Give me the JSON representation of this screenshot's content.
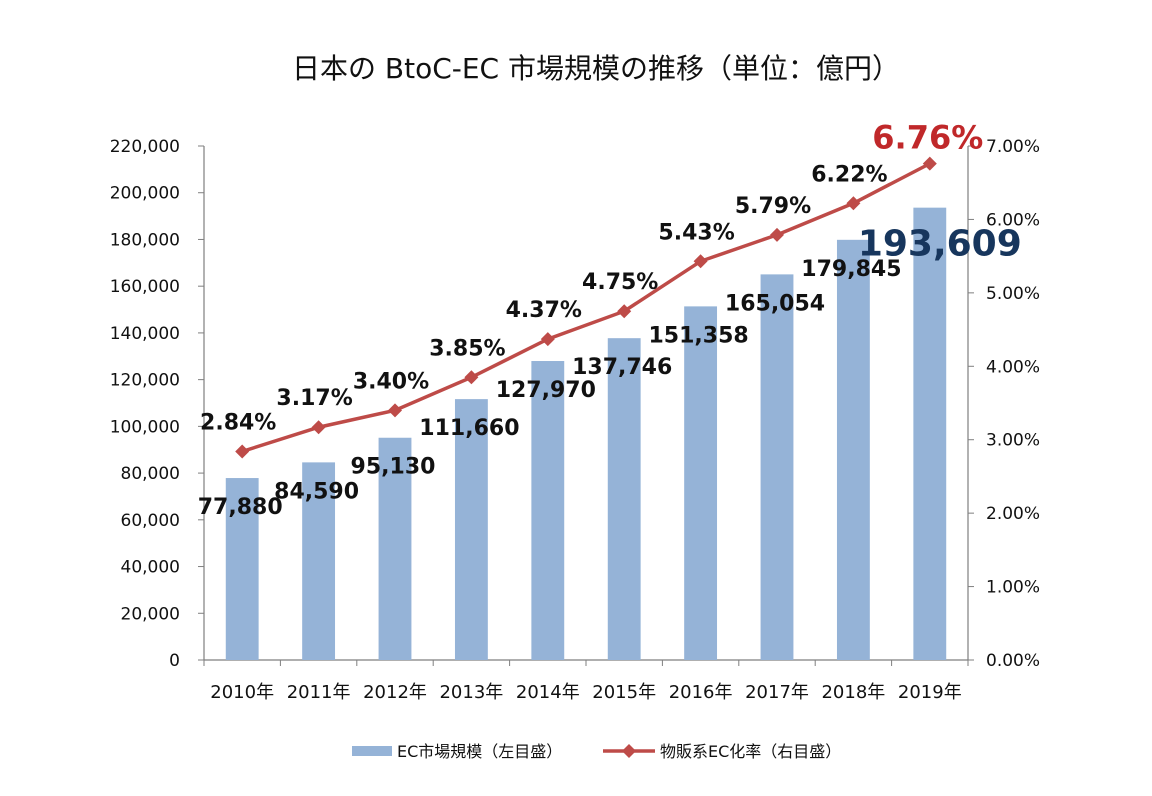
{
  "chart_data": {
    "type": "bar+line",
    "title": "日本の BtoC-EC 市場規模の推移（単位：億円）",
    "categories": [
      "2010年",
      "2011年",
      "2012年",
      "2013年",
      "2014年",
      "2015年",
      "2016年",
      "2017年",
      "2018年",
      "2019年"
    ],
    "series": [
      {
        "name": "EC市場規模（左目盛）",
        "kind": "bar",
        "axis": "left",
        "color": "#95b3d7",
        "values": [
          77880,
          84590,
          95130,
          111660,
          127970,
          137746,
          151358,
          165054,
          179845,
          193609
        ],
        "labels": [
          "77,880",
          "84,590",
          "95,130",
          "111,660",
          "127,970",
          "137,746",
          "151,358",
          "165,054",
          "179,845",
          "193,609"
        ]
      },
      {
        "name": "物販系EC化率（右目盛）",
        "kind": "line",
        "axis": "right",
        "color": "#be4b48",
        "values": [
          2.84,
          3.17,
          3.4,
          3.85,
          4.37,
          4.75,
          5.43,
          5.79,
          6.22,
          6.76
        ],
        "labels": [
          "2.84%",
          "3.17%",
          "3.40%",
          "3.85%",
          "4.37%",
          "4.75%",
          "5.43%",
          "5.79%",
          "6.22%",
          "6.76%"
        ]
      }
    ],
    "y_left": {
      "range": [
        0,
        220000
      ],
      "ticks": [
        "0",
        "20,000",
        "40,000",
        "60,000",
        "80,000",
        "100,000",
        "120,000",
        "140,000",
        "160,000",
        "180,000",
        "200,000",
        "220,000"
      ]
    },
    "y_right": {
      "range": [
        0,
        7
      ],
      "ticks": [
        "0.00%",
        "1.00%",
        "2.00%",
        "3.00%",
        "4.00%",
        "5.00%",
        "6.00%",
        "7.00%"
      ]
    },
    "highlight_colors": {
      "bar_last": "#17365d",
      "line_last": "#c0282a"
    },
    "grid": false,
    "legend_position": "bottom"
  }
}
